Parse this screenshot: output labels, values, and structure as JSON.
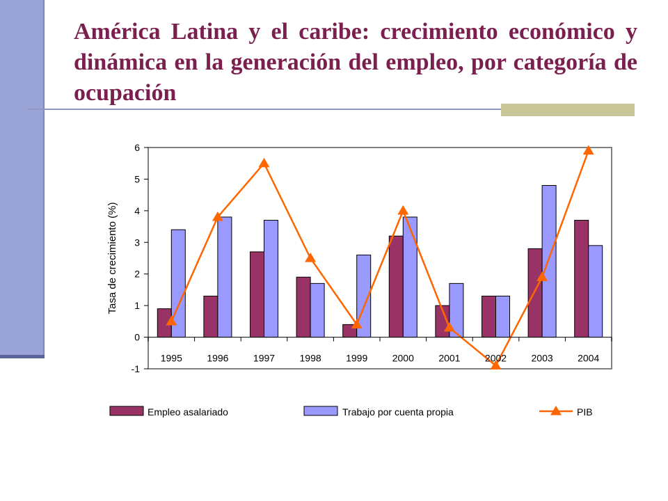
{
  "slide": {
    "title": "América Latina y el caribe: crecimiento económico y dinámica en la generación del empleo, por categoría de ocupación",
    "colors": {
      "title": "#7a1f4e",
      "side_bar": "#9aa3d6",
      "rule": "#8f97c9",
      "accent": "#c9c79a"
    }
  },
  "chart_data": {
    "type": "bar",
    "title": "",
    "xlabel": "",
    "ylabel": "Tasa de crecimiento (%)",
    "ylim": [
      -1,
      6
    ],
    "yticks": [
      -1,
      0,
      1,
      2,
      3,
      4,
      5,
      6
    ],
    "grid": false,
    "legend_position": "bottom",
    "categories": [
      "1995",
      "1996",
      "1997",
      "1998",
      "1999",
      "2000",
      "2001",
      "2002",
      "2003",
      "2004"
    ],
    "series": [
      {
        "name": "Empleo asalariado",
        "kind": "bar",
        "color": "#993366",
        "values": [
          0.9,
          1.3,
          2.7,
          1.9,
          0.4,
          3.2,
          1.0,
          1.3,
          2.8,
          3.7
        ]
      },
      {
        "name": "Trabajo por cuenta propia",
        "kind": "bar",
        "color": "#9999ff",
        "values": [
          3.4,
          3.8,
          3.7,
          1.7,
          2.6,
          3.8,
          1.7,
          1.3,
          4.8,
          2.9
        ]
      },
      {
        "name": "PIB",
        "kind": "line",
        "marker": "triangle",
        "color": "#ff6600",
        "values": [
          0.5,
          3.8,
          5.5,
          2.5,
          0.4,
          4.0,
          0.3,
          -0.9,
          1.9,
          5.9
        ]
      }
    ]
  }
}
